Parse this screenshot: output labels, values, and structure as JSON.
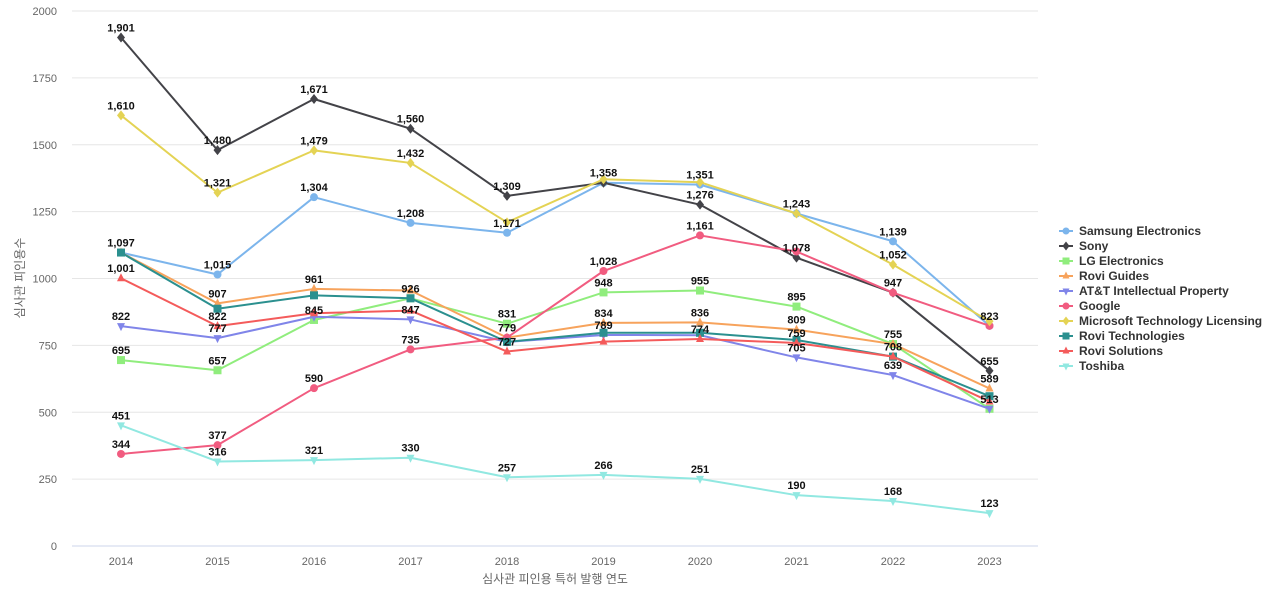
{
  "chart_data": {
    "type": "line",
    "title": "",
    "xlabel": "심사관 피인용 특허 발행 연도",
    "ylabel": "심사관 피인용수",
    "x": [
      "2014",
      "2015",
      "2016",
      "2017",
      "2018",
      "2019",
      "2020",
      "2021",
      "2022",
      "2023"
    ],
    "ylim": [
      0,
      2000
    ],
    "yticks": [
      0,
      250,
      500,
      750,
      1000,
      1250,
      1500,
      1750,
      2000
    ],
    "grid": true,
    "legend_position": "right",
    "data_labels": true,
    "series": [
      {
        "name": "Samsung Electronics",
        "color": "#7cb5ec",
        "marker": "circle",
        "values": [
          1097,
          1015,
          1304,
          1208,
          1171,
          1358,
          1351,
          1243,
          1139,
          823
        ]
      },
      {
        "name": "Sony",
        "color": "#434348",
        "marker": "diamond",
        "values": [
          1901,
          1480,
          1671,
          1560,
          1309,
          1358,
          1276,
          1078,
          947,
          655
        ]
      },
      {
        "name": "LG Electronics",
        "color": "#90ed7d",
        "marker": "square",
        "values": [
          695,
          657,
          845,
          926,
          831,
          948,
          955,
          895,
          755,
          513
        ]
      },
      {
        "name": "Rovi Guides",
        "color": "#f7a35c",
        "marker": "triangle",
        "values": [
          1097,
          907,
          961,
          955,
          779,
          834,
          836,
          809,
          755,
          589
        ]
      },
      {
        "name": "AT&T Intellectual Property",
        "color": "#8085e9",
        "marker": "triangle-down",
        "values": [
          822,
          777,
          857,
          847,
          763,
          789,
          788,
          705,
          639,
          513
        ]
      },
      {
        "name": "Google",
        "color": "#f15c80",
        "marker": "circle",
        "values": [
          344,
          377,
          590,
          735,
          779,
          1028,
          1161,
          1101,
          947,
          823
        ]
      },
      {
        "name": "Microsoft Technology Licensing",
        "color": "#e4d354",
        "marker": "diamond",
        "values": [
          1610,
          1321,
          1479,
          1432,
          1210,
          1371,
          1360,
          1243,
          1052,
          840
        ]
      },
      {
        "name": "Rovi Technologies",
        "color": "#2b908f",
        "marker": "square",
        "values": [
          1097,
          887,
          937,
          926,
          763,
          797,
          797,
          770,
          708,
          560
        ]
      },
      {
        "name": "Rovi Solutions",
        "color": "#f45b5b",
        "marker": "triangle",
        "values": [
          1001,
          822,
          870,
          880,
          727,
          764,
          774,
          759,
          708,
          540
        ]
      },
      {
        "name": "Toshiba",
        "color": "#91e8e1",
        "marker": "triangle-down",
        "values": [
          451,
          316,
          321,
          330,
          257,
          266,
          251,
          190,
          168,
          123
        ]
      }
    ],
    "labels": [
      {
        "text": "1,901",
        "x": "2014",
        "y": 1901
      },
      {
        "text": "1,610",
        "x": "2014",
        "y": 1610
      },
      {
        "text": "1,097",
        "x": "2014",
        "y": 1097
      },
      {
        "text": "1,001",
        "x": "2014",
        "y": 1001
      },
      {
        "text": "822",
        "x": "2014",
        "y": 822
      },
      {
        "text": "695",
        "x": "2014",
        "y": 695
      },
      {
        "text": "451",
        "x": "2014",
        "y": 451
      },
      {
        "text": "344",
        "x": "2014",
        "y": 344
      },
      {
        "text": "1,480",
        "x": "2015",
        "y": 1480
      },
      {
        "text": "1,321",
        "x": "2015",
        "y": 1321
      },
      {
        "text": "1,015",
        "x": "2015",
        "y": 1015
      },
      {
        "text": "907",
        "x": "2015",
        "y": 907
      },
      {
        "text": "822",
        "x": "2015",
        "y": 822
      },
      {
        "text": "777",
        "x": "2015",
        "y": 777
      },
      {
        "text": "657",
        "x": "2015",
        "y": 657
      },
      {
        "text": "377",
        "x": "2015",
        "y": 377
      },
      {
        "text": "316",
        "x": "2015",
        "y": 316
      },
      {
        "text": "1,671",
        "x": "2016",
        "y": 1671
      },
      {
        "text": "1,479",
        "x": "2016",
        "y": 1479
      },
      {
        "text": "1,304",
        "x": "2016",
        "y": 1304
      },
      {
        "text": "961",
        "x": "2016",
        "y": 961
      },
      {
        "text": "845",
        "x": "2016",
        "y": 845
      },
      {
        "text": "590",
        "x": "2016",
        "y": 590
      },
      {
        "text": "321",
        "x": "2016",
        "y": 321
      },
      {
        "text": "1,560",
        "x": "2017",
        "y": 1560
      },
      {
        "text": "1,432",
        "x": "2017",
        "y": 1432
      },
      {
        "text": "1,208",
        "x": "2017",
        "y": 1208
      },
      {
        "text": "926",
        "x": "2017",
        "y": 926
      },
      {
        "text": "847",
        "x": "2017",
        "y": 847
      },
      {
        "text": "735",
        "x": "2017",
        "y": 735
      },
      {
        "text": "330",
        "x": "2017",
        "y": 330
      },
      {
        "text": "1,309",
        "x": "2018",
        "y": 1309
      },
      {
        "text": "1,171",
        "x": "2018",
        "y": 1171
      },
      {
        "text": "831",
        "x": "2018",
        "y": 831
      },
      {
        "text": "779",
        "x": "2018",
        "y": 779
      },
      {
        "text": "727",
        "x": "2018",
        "y": 727
      },
      {
        "text": "257",
        "x": "2018",
        "y": 257
      },
      {
        "text": "1,358",
        "x": "2019",
        "y": 1358
      },
      {
        "text": "1,028",
        "x": "2019",
        "y": 1028
      },
      {
        "text": "948",
        "x": "2019",
        "y": 948
      },
      {
        "text": "834",
        "x": "2019",
        "y": 834
      },
      {
        "text": "789",
        "x": "2019",
        "y": 789
      },
      {
        "text": "266",
        "x": "2019",
        "y": 266
      },
      {
        "text": "1,351",
        "x": "2020",
        "y": 1351
      },
      {
        "text": "1,276",
        "x": "2020",
        "y": 1276
      },
      {
        "text": "1,161",
        "x": "2020",
        "y": 1161
      },
      {
        "text": "955",
        "x": "2020",
        "y": 955
      },
      {
        "text": "836",
        "x": "2020",
        "y": 836
      },
      {
        "text": "774",
        "x": "2020",
        "y": 774
      },
      {
        "text": "251",
        "x": "2020",
        "y": 251
      },
      {
        "text": "1,243",
        "x": "2021",
        "y": 1243
      },
      {
        "text": "1,078",
        "x": "2021",
        "y": 1078
      },
      {
        "text": "895",
        "x": "2021",
        "y": 895
      },
      {
        "text": "809",
        "x": "2021",
        "y": 809
      },
      {
        "text": "759",
        "x": "2021",
        "y": 759
      },
      {
        "text": "705",
        "x": "2021",
        "y": 705
      },
      {
        "text": "190",
        "x": "2021",
        "y": 190
      },
      {
        "text": "1,139",
        "x": "2022",
        "y": 1139
      },
      {
        "text": "1,052",
        "x": "2022",
        "y": 1052
      },
      {
        "text": "947",
        "x": "2022",
        "y": 947
      },
      {
        "text": "755",
        "x": "2022",
        "y": 755
      },
      {
        "text": "708",
        "x": "2022",
        "y": 708
      },
      {
        "text": "639",
        "x": "2022",
        "y": 639
      },
      {
        "text": "168",
        "x": "2022",
        "y": 168
      },
      {
        "text": "823",
        "x": "2023",
        "y": 823
      },
      {
        "text": "655",
        "x": "2023",
        "y": 655
      },
      {
        "text": "589",
        "x": "2023",
        "y": 589
      },
      {
        "text": "513",
        "x": "2023",
        "y": 513
      },
      {
        "text": "123",
        "x": "2023",
        "y": 123
      }
    ]
  }
}
